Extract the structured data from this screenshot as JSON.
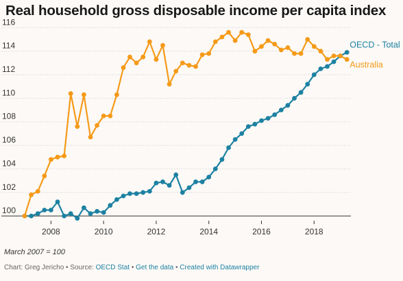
{
  "title": "Real household gross disposable income per capita index",
  "note": "March 2007 = 100",
  "footer": {
    "chart_by": "Chart: Greg Jericho",
    "source_prefix": "Source:",
    "source": "OECD Stat",
    "get_data": "Get the data",
    "created_with": "Created with Datawrapper",
    "separator": "•"
  },
  "colors": {
    "australia": "#f59a18",
    "oecd": "#1d81a2",
    "grid": "#d8d8d8",
    "axis": "#333333"
  },
  "chart_data": {
    "type": "line",
    "title": "Real household gross disposable income per capita index",
    "xlabel": "",
    "ylabel": "",
    "xlim": [
      2007.0,
      2019.4
    ],
    "ylim": [
      99.6,
      116.6
    ],
    "x_ticks": [
      2008,
      2010,
      2012,
      2014,
      2016,
      2018
    ],
    "y_ticks": [
      100,
      102,
      104,
      106,
      108,
      110,
      112,
      114,
      116
    ],
    "grid": true,
    "legend": "direct labels at line ends",
    "series": [
      {
        "name": "OECD - Total",
        "color": "#1d81a2",
        "x": [
          2007.0,
          2007.25,
          2007.5,
          2007.75,
          2008.0,
          2008.25,
          2008.5,
          2008.75,
          2009.0,
          2009.25,
          2009.5,
          2009.75,
          2010.0,
          2010.25,
          2010.5,
          2010.75,
          2011.0,
          2011.25,
          2011.5,
          2011.75,
          2012.0,
          2012.25,
          2012.5,
          2012.75,
          2013.0,
          2013.25,
          2013.5,
          2013.75,
          2014.0,
          2014.25,
          2014.5,
          2014.75,
          2015.0,
          2015.25,
          2015.5,
          2015.75,
          2016.0,
          2016.25,
          2016.5,
          2016.75,
          2017.0,
          2017.25,
          2017.5,
          2017.75,
          2018.0,
          2018.25,
          2018.5,
          2018.75,
          2019.0,
          2019.25
        ],
        "values": [
          100.0,
          100.0,
          100.2,
          100.5,
          100.5,
          101.2,
          100.0,
          100.2,
          99.8,
          100.7,
          100.2,
          100.4,
          100.3,
          100.9,
          101.4,
          101.7,
          101.9,
          101.9,
          102.0,
          102.1,
          102.8,
          102.9,
          102.6,
          103.5,
          102.0,
          102.4,
          102.9,
          102.9,
          103.3,
          104.0,
          104.8,
          105.8,
          106.5,
          107.0,
          107.6,
          107.8,
          108.1,
          108.3,
          108.6,
          109.0,
          109.4,
          110.0,
          110.5,
          111.2,
          112.0,
          112.5,
          112.7,
          113.1,
          113.6,
          113.9
        ]
      },
      {
        "name": "Australia",
        "color": "#f59a18",
        "x": [
          2007.0,
          2007.25,
          2007.5,
          2007.75,
          2008.0,
          2008.25,
          2008.5,
          2008.75,
          2009.0,
          2009.25,
          2009.5,
          2009.75,
          2010.0,
          2010.25,
          2010.5,
          2010.75,
          2011.0,
          2011.25,
          2011.5,
          2011.75,
          2012.0,
          2012.25,
          2012.5,
          2012.75,
          2013.0,
          2013.25,
          2013.5,
          2013.75,
          2014.0,
          2014.25,
          2014.5,
          2014.75,
          2015.0,
          2015.25,
          2015.5,
          2015.75,
          2016.0,
          2016.25,
          2016.5,
          2016.75,
          2017.0,
          2017.25,
          2017.5,
          2017.75,
          2018.0,
          2018.25,
          2018.5,
          2018.75,
          2019.0,
          2019.25
        ],
        "values": [
          100.0,
          101.8,
          102.1,
          103.4,
          104.8,
          105.0,
          105.1,
          110.4,
          107.6,
          110.3,
          106.7,
          107.7,
          108.5,
          108.5,
          110.3,
          112.6,
          113.5,
          113.0,
          113.5,
          114.8,
          113.3,
          114.5,
          111.2,
          112.3,
          113.0,
          112.8,
          112.7,
          113.7,
          113.8,
          114.8,
          115.2,
          115.6,
          114.9,
          115.6,
          115.4,
          114.0,
          114.4,
          114.9,
          114.6,
          114.1,
          114.3,
          113.8,
          113.8,
          115.0,
          114.4,
          114.0,
          113.3,
          113.6,
          113.6,
          113.3
        ]
      }
    ]
  }
}
